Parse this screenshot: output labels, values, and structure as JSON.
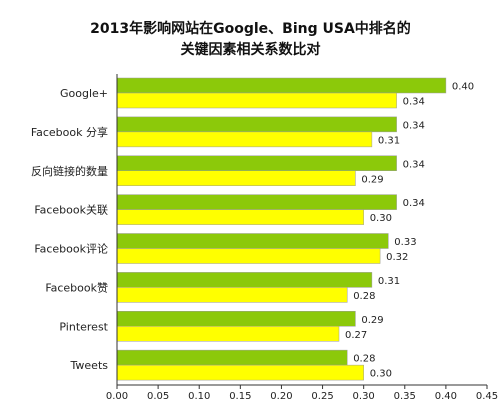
{
  "chart_data": {
    "type": "bar",
    "orientation": "horizontal",
    "title_lines": [
      "2013年影响网站在Google、Bing USA中排名的",
      "关键因素相关系数比对"
    ],
    "categories": [
      "Google+",
      "Facebook 分享",
      "反向链接的数量",
      "Facebook关联",
      "Facebook评论",
      "Facebook赞",
      "Pinterest",
      "Tweets"
    ],
    "series": [
      {
        "values": [
          0.4,
          0.34,
          0.34,
          0.34,
          0.33,
          0.31,
          0.29,
          0.28
        ],
        "color": "#8CC90A"
      },
      {
        "values": [
          0.34,
          0.31,
          0.29,
          0.3,
          0.32,
          0.28,
          0.27,
          0.3
        ],
        "color": "#FFFF00"
      }
    ],
    "xlim": [
      0,
      0.45
    ],
    "xticks": [
      "0.00",
      "0.05",
      "0.10",
      "0.15",
      "0.20",
      "0.25",
      "0.30",
      "0.35",
      "0.40",
      "0.45"
    ],
    "grid": false,
    "legend": "none"
  }
}
